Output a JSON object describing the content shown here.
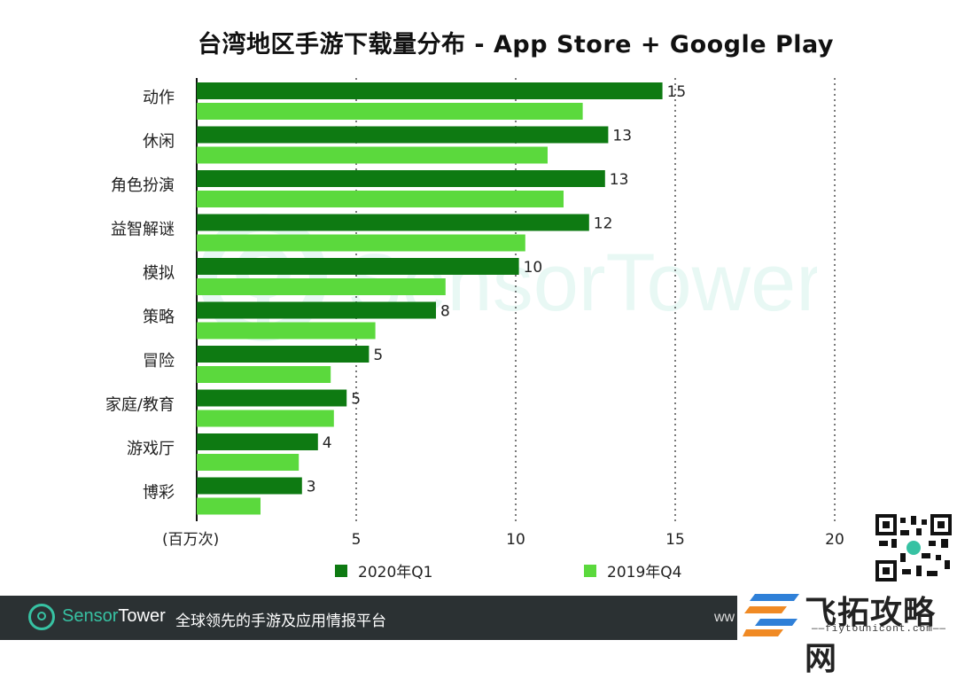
{
  "chart_data": {
    "type": "bar",
    "orientation": "horizontal",
    "title": "台湾地区手游下载量分布 - App Store + Google Play",
    "unit_label": "(百万次)",
    "categories": [
      "动作",
      "休闲",
      "角色扮演",
      "益智解谜",
      "模拟",
      "策略",
      "冒险",
      "家庭/教育",
      "游戏厅",
      "博彩"
    ],
    "series": [
      {
        "name": "2020年Q1",
        "color": "#0e7a12",
        "values": [
          14.6,
          12.9,
          12.8,
          12.3,
          10.1,
          7.5,
          5.4,
          4.7,
          3.8,
          3.3
        ],
        "labels": [
          "15",
          "13",
          "13",
          "12",
          "10",
          "8",
          "5",
          "5",
          "4",
          "3"
        ]
      },
      {
        "name": "2019年Q4",
        "color": "#5bd93d",
        "values": [
          12.1,
          11.0,
          11.5,
          10.3,
          7.8,
          5.6,
          4.2,
          4.3,
          3.2,
          2.0
        ]
      }
    ],
    "xlim": [
      0,
      20
    ],
    "xticks": [
      5,
      10,
      15,
      20
    ],
    "grid": "vertical dotted",
    "legend_position": "bottom"
  },
  "footer": {
    "brand_a": "Sensor",
    "brand_b": "Tower",
    "slogan": "全球领先的手游及应用情报平台",
    "www": "ww"
  },
  "watermark": {
    "text": "SensorTower"
  },
  "site_logo": {
    "name": "飞拓攻略网",
    "url": "——fiytounicont.com——"
  },
  "colors": {
    "dark_green": "#0e7a12",
    "light_green": "#5bd93d",
    "footer_bg": "#2b3133",
    "accent": "#37c2a3"
  }
}
